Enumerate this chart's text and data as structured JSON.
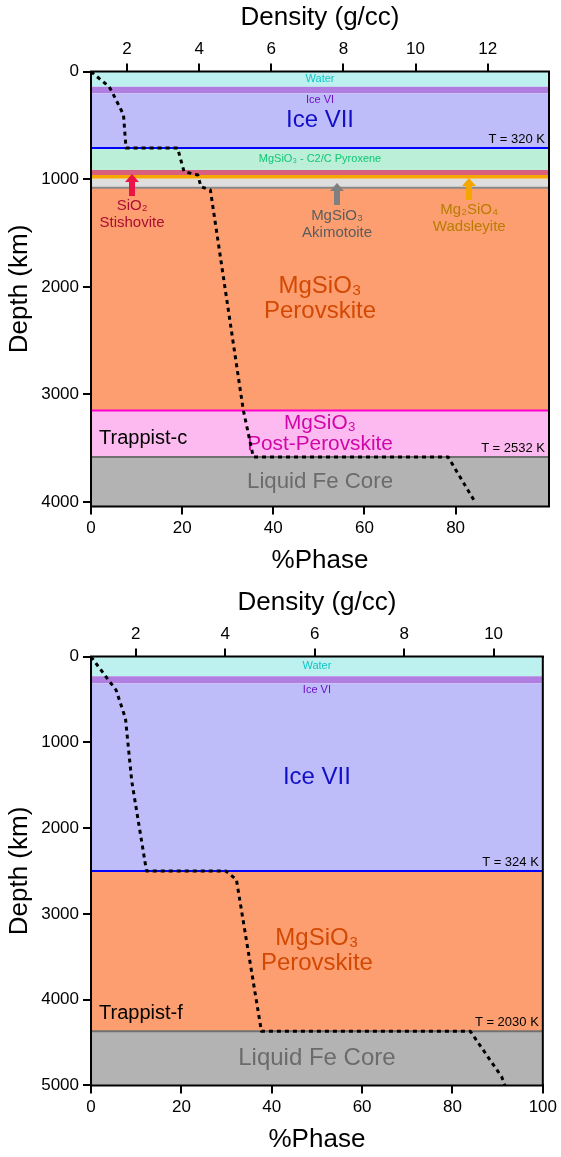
{
  "chart_data": [
    {
      "type": "line",
      "xlabel": "%Phase",
      "ylabel": "Depth (km)",
      "x2label": "Density (g/cc)",
      "xlim": [
        0,
        100.5
      ],
      "xticks": [
        0,
        20,
        40,
        60,
        80
      ],
      "x2lim": [
        1,
        13.7
      ],
      "x2ticks": [
        2,
        4,
        6,
        8,
        10,
        12
      ],
      "ylim": [
        4040,
        0
      ],
      "yticks": [
        0,
        1000,
        2000,
        3000,
        4000
      ],
      "grid": false,
      "legend": false,
      "marker": "none",
      "series": [
        {
          "type": "line",
          "axis": "x2",
          "color": "#000000",
          "line_style": "dotted",
          "x": [
            1.0,
            1.5,
            1.6,
            1.9,
            1.97,
            3.4,
            3.58,
            3.96,
            4.05,
            4.31,
            5.22,
            5.5,
            10.9,
            11.65
          ],
          "values": [
            0,
            140,
            200,
            400,
            710,
            710,
            930,
            960,
            1070,
            1100,
            3140,
            3580,
            3580,
            4000
          ]
        }
      ],
      "bands": [
        {
          "axis": "y",
          "from": 0,
          "to": 140,
          "label": "Water",
          "color": "#bdf1f0"
        },
        {
          "axis": "y",
          "from": 140,
          "to": 200,
          "label": "Ice VI",
          "color": "#b07ee0"
        },
        {
          "axis": "y",
          "from": 200,
          "to": 710,
          "label": "Ice VII",
          "color": "#bebdfa"
        },
        {
          "axis": "y",
          "from": 710,
          "to": 915,
          "label": "MgSiO₃ - C2/C Pyroxene",
          "color": "#bcefd8"
        },
        {
          "axis": "y",
          "from": 915,
          "to": 960,
          "color": "#d9607c"
        },
        {
          "axis": "y",
          "from": 960,
          "to": 995,
          "color": "#f7a700"
        },
        {
          "axis": "y",
          "from": 995,
          "to": 1080,
          "color": "#dedede"
        },
        {
          "axis": "y",
          "from": 1080,
          "to": 3150,
          "label": "MgSiO₃\nPerovskite",
          "color": "#fc9e70"
        },
        {
          "axis": "y",
          "from": 3150,
          "to": 3580,
          "label": "MgSiO₃\nPost-Perovskite",
          "color": "#fdbaf0"
        },
        {
          "axis": "y",
          "from": 3580,
          "to": 4040,
          "label": "Liquid Fe Core",
          "color": "#b3b3b3"
        }
      ],
      "ref_lines": [
        {
          "axis": "y",
          "value": 710,
          "color": "#0000ff"
        },
        {
          "axis": "y",
          "value": 1080,
          "color": "#888888"
        },
        {
          "axis": "y",
          "value": 3150,
          "color": "#ff00cc"
        },
        {
          "axis": "y",
          "value": 3580,
          "color": "#707070"
        }
      ],
      "annotations": [
        "Trappist-c",
        {
          "text": "T = 320 K",
          "y": 710
        },
        {
          "text": "T = 2532 K",
          "y": 3580
        },
        {
          "text": "SiO₂\nStishovite",
          "x": 9,
          "y": 940
        },
        {
          "text": "MgSiO₃\nAkimotoite",
          "x": 54,
          "y": 1030
        },
        {
          "text": "Mg₂SiO₄\nWadsleyite",
          "x": 83,
          "y": 975
        }
      ]
    },
    {
      "type": "line",
      "xlabel": "%Phase",
      "ylabel": "Depth (km)",
      "x2label": "Density (g/cc)",
      "xlim": [
        0,
        100
      ],
      "xticks": [
        0,
        20,
        40,
        60,
        80,
        100
      ],
      "x2lim": [
        1,
        11.1
      ],
      "x2ticks": [
        2,
        4,
        6,
        8,
        10
      ],
      "ylim": [
        5000,
        0
      ],
      "yticks": [
        0,
        1000,
        2000,
        3000,
        4000,
        5000
      ],
      "grid": false,
      "legend": false,
      "marker": "none",
      "series": [
        {
          "type": "line",
          "axis": "x2",
          "color": "#000000",
          "line_style": "dotted",
          "x": [
            1.0,
            1.37,
            1.56,
            1.77,
            1.91,
            2.24,
            4.01,
            4.25,
            4.81,
            9.48,
            10.18,
            10.25
          ],
          "values": [
            0,
            260,
            390,
            720,
            1450,
            2500,
            2500,
            2600,
            4370,
            4370,
            4900,
            5000
          ]
        }
      ],
      "bands": [
        {
          "axis": "y",
          "from": 0,
          "to": 230,
          "label": "Water",
          "color": "#bdf1f0"
        },
        {
          "axis": "y",
          "from": 230,
          "to": 310,
          "label": "Ice VI",
          "color": "#b07ee0"
        },
        {
          "axis": "y",
          "from": 310,
          "to": 2500,
          "label": "Ice VII",
          "color": "#bebdfa"
        },
        {
          "axis": "y",
          "from": 2500,
          "to": 4370,
          "label": "MgSiO₃\nPerovskite",
          "color": "#fc9e70"
        },
        {
          "axis": "y",
          "from": 4370,
          "to": 5000,
          "label": "Liquid Fe Core",
          "color": "#b3b3b3"
        }
      ],
      "ref_lines": [
        {
          "axis": "y",
          "value": 2500,
          "color": "#0000ff"
        },
        {
          "axis": "y",
          "value": 4370,
          "color": "#707070"
        }
      ],
      "annotations": [
        "Trappist-f",
        {
          "text": "T = 324 K",
          "y": 2500
        },
        {
          "text": "T = 2030 K",
          "y": 4370
        }
      ]
    }
  ]
}
